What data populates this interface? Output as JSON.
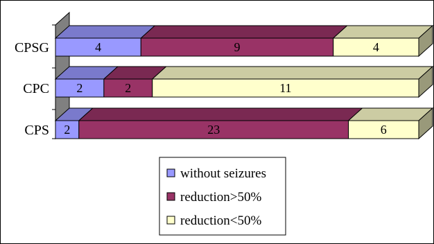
{
  "chart_data": {
    "type": "bar",
    "orientation": "horizontal",
    "stacked": true,
    "three_d": true,
    "categories": [
      "CPSG",
      "CPC",
      "CPS"
    ],
    "series": [
      {
        "name": "without seizures",
        "values": [
          4,
          2,
          2
        ],
        "color": "#9999FF"
      },
      {
        "name": "reduction>50%",
        "values": [
          9,
          2,
          23
        ],
        "color": "#993366"
      },
      {
        "name": "reduction<50%",
        "values": [
          4,
          11,
          6
        ],
        "color": "#FFFFCC"
      }
    ],
    "title": "",
    "xlabel": "",
    "ylabel": "",
    "grid": false,
    "legend": "bottom-center",
    "wall_color": "#808080"
  }
}
